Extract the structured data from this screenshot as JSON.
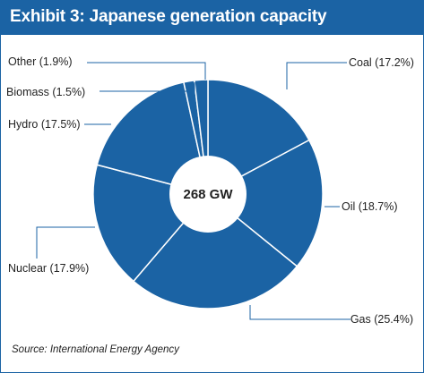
{
  "title": "Exhibit 3: Japanese generation capacity",
  "source": "Source: International Energy Agency",
  "chart_data": {
    "type": "pie",
    "style": "donut",
    "center_label": "268 GW",
    "slices": [
      {
        "name": "Coal",
        "value": 17.2,
        "label": "Coal (17.2%)"
      },
      {
        "name": "Oil",
        "value": 18.7,
        "label": "Oil (18.7%)"
      },
      {
        "name": "Gas",
        "value": 25.4,
        "label": "Gas (25.4%)"
      },
      {
        "name": "Nuclear",
        "value": 17.9,
        "label": "Nuclear (17.9%)"
      },
      {
        "name": "Hydro",
        "value": 17.5,
        "label": "Hydro (17.5%)"
      },
      {
        "name": "Biomass",
        "value": 1.5,
        "label": "Biomass (1.5%)"
      },
      {
        "name": "Other",
        "value": 1.9,
        "label": "Other (1.9%)"
      }
    ],
    "colors": {
      "slice": "#1b63a4",
      "separator": "#ffffff",
      "header": "#1b63a4",
      "leader": "#1b63a4"
    }
  }
}
